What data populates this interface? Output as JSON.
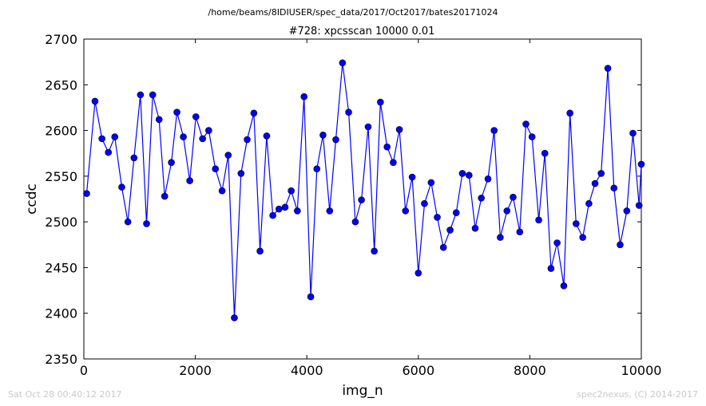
{
  "header": {
    "path": "/home/beams/8IDIUSER/spec_data/2017/Oct2017/bates20171024",
    "scan_title": "#728: xpcsscan 10000 0.01"
  },
  "footer": {
    "timestamp": "Sat Oct 28 00:40:12 2017",
    "credit": "spec2nexus, (C) 2014-2017"
  },
  "chart_data": {
    "type": "line",
    "title": "#728: xpcsscan 10000 0.01",
    "xlabel": "img_n",
    "ylabel": "ccdc",
    "xlim": [
      0,
      10000
    ],
    "ylim": [
      2350,
      2700
    ],
    "xticks": [
      0,
      2000,
      4000,
      6000,
      8000,
      10000
    ],
    "yticks": [
      2350,
      2400,
      2450,
      2500,
      2550,
      2600,
      2650,
      2700
    ],
    "series_color": "#0000ff",
    "marker_color": "#0000ff",
    "marker": "circle",
    "grid": false,
    "x": [
      50,
      200,
      325,
      440,
      555,
      680,
      790,
      900,
      1015,
      1125,
      1235,
      1350,
      1450,
      1570,
      1670,
      1785,
      1900,
      2010,
      2130,
      2240,
      2360,
      2480,
      2590,
      2700,
      2820,
      2930,
      3050,
      3160,
      3280,
      3390,
      3500,
      3610,
      3720,
      3830,
      3950,
      4070,
      4180,
      4290,
      4410,
      4520,
      4640,
      4750,
      4870,
      4980,
      5100,
      5210,
      5320,
      5440,
      5550,
      5660,
      5770,
      5890,
      6000,
      6110,
      6230,
      6340,
      6450,
      6570,
      6680,
      6790,
      6910,
      7020,
      7130,
      7250,
      7360,
      7470,
      7590,
      7700,
      7820,
      7930,
      8040,
      8160,
      8270,
      8380,
      8490,
      8610,
      8720,
      8830,
      8950,
      9060,
      9170,
      9280,
      9400,
      9510,
      9620,
      9740,
      9850,
      9960,
      10000
    ],
    "y": [
      2531,
      2632,
      2591,
      2576,
      2593,
      2538,
      2500,
      2570,
      2639,
      2498,
      2639,
      2612,
      2528,
      2565,
      2620,
      2593,
      2545,
      2615,
      2591,
      2600,
      2558,
      2534,
      2573,
      2395,
      2553,
      2590,
      2619,
      2468,
      2594,
      2507,
      2514,
      2516,
      2534,
      2512,
      2637,
      2418,
      2558,
      2595,
      2512,
      2590,
      2674,
      2620,
      2500,
      2524,
      2604,
      2468,
      2631,
      2582,
      2565,
      2601,
      2512,
      2549,
      2444,
      2520,
      2543,
      2505,
      2472,
      2491,
      2510,
      2553,
      2551,
      2493,
      2526,
      2547,
      2600,
      2483,
      2512,
      2527,
      2489,
      2607,
      2593,
      2502,
      2575,
      2449,
      2477,
      2430,
      2619,
      2498,
      2483,
      2520,
      2542,
      2553,
      2668,
      2537,
      2475,
      2512,
      2597,
      2518,
      2563
    ]
  }
}
